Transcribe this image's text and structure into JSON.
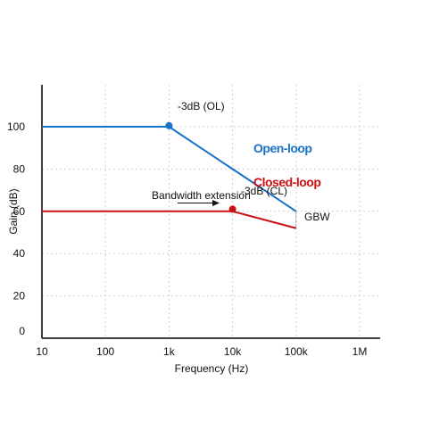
{
  "chart_data": {
    "type": "line",
    "xlabel": "Frequency (Hz)",
    "ylabel": "Gain (dB)",
    "x_scale": "log",
    "xlim": [
      10,
      1000000
    ],
    "ylim": [
      0,
      120
    ],
    "x_ticks": [
      10,
      100,
      1000,
      10000,
      100000,
      1000000
    ],
    "x_tick_labels": [
      "10",
      "100",
      "1k",
      "10k",
      "100k",
      "1M"
    ],
    "y_ticks": [
      0,
      20,
      40,
      60,
      80,
      100
    ],
    "y_tick_labels": [
      "0",
      "20",
      "40",
      "60",
      "80",
      "100"
    ],
    "grid": true,
    "series": [
      {
        "name": "Open-loop",
        "color": "#1a72c7",
        "x": [
          10,
          1000,
          100000
        ],
        "y": [
          100,
          100,
          60
        ]
      },
      {
        "name": "Closed-loop",
        "color": "#cc1111",
        "x": [
          10,
          10000,
          100000
        ],
        "y": [
          60,
          60,
          52
        ]
      }
    ],
    "markers": [
      {
        "x": 1000,
        "y": 100.5,
        "color": "#1a72c7",
        "label": "-3dB (OL)"
      },
      {
        "x": 10000,
        "y": 61,
        "color": "#cc1111",
        "label": "-3dB (CL)"
      }
    ],
    "annotations": {
      "bandwidth": {
        "text": "Bandwidth extension",
        "arrow_from": 2000,
        "arrow_to": 5500,
        "y": 64
      },
      "gbw": {
        "text": "GBW",
        "x": 100000,
        "y_top": 60,
        "y_bottom": 52
      }
    }
  }
}
